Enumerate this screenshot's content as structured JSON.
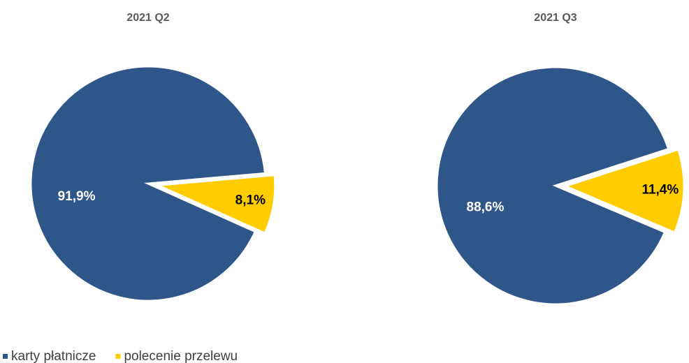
{
  "legend": {
    "labels": [
      "karty płatnicze",
      "polecenie przelewu"
    ],
    "colors": [
      "#2f5689",
      "#ffcc00"
    ]
  },
  "chart_data": [
    {
      "type": "pie",
      "title": "2021 Q2",
      "values": [
        91.9,
        8.1
      ],
      "value_labels": [
        "91,9%",
        "8,1%"
      ]
    },
    {
      "type": "pie",
      "title": "2021 Q3",
      "values": [
        88.6,
        11.4
      ],
      "value_labels": [
        "88,6%",
        "11,4%"
      ]
    }
  ]
}
